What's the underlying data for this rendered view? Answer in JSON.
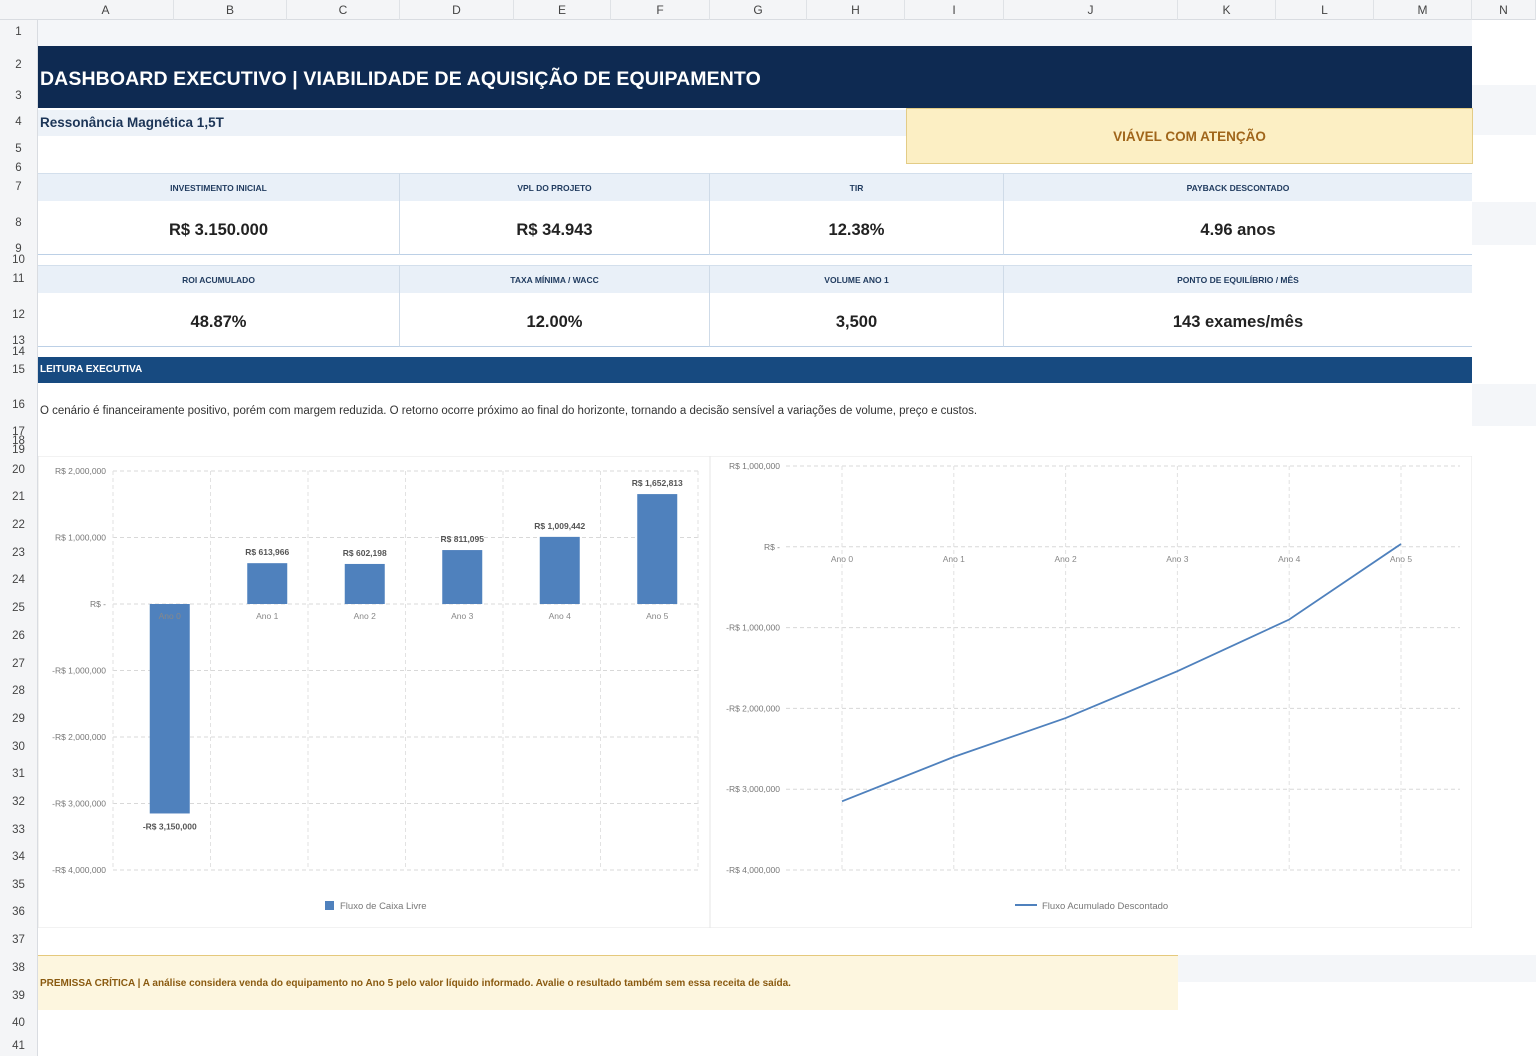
{
  "columns": [
    "A",
    "B",
    "C",
    "D",
    "E",
    "F",
    "G",
    "H",
    "I",
    "J",
    "K",
    "L",
    "M",
    "N"
  ],
  "rows": [
    "1",
    "2",
    "3",
    "4",
    "5",
    "6",
    "7",
    "8",
    "9",
    "10",
    "11",
    "12",
    "13",
    "14",
    "15",
    "16",
    "17",
    "18",
    "19",
    "20",
    "21",
    "22",
    "23",
    "24",
    "25",
    "26",
    "27",
    "28",
    "29",
    "30",
    "31",
    "32",
    "33",
    "34",
    "35",
    "36",
    "37",
    "38",
    "39",
    "40",
    "41"
  ],
  "header": {
    "title": "DASHBOARD EXECUTIVO | VIABILIDADE DE AQUISIÇÃO DE EQUIPAMENTO",
    "subtitle": "Ressonância Magnética 1,5T",
    "status": "VIÁVEL COM ATENÇÃO"
  },
  "kpis_row1": [
    {
      "label": "INVESTIMENTO INICIAL",
      "value": "R$ 3.150.000"
    },
    {
      "label": "VPL DO PROJETO",
      "value": "R$ 34.943"
    },
    {
      "label": "TIR",
      "value": "12.38%"
    },
    {
      "label": "PAYBACK DESCONTADO",
      "value": "4.96 anos"
    }
  ],
  "kpis_row2": [
    {
      "label": "ROI ACUMULADO",
      "value": "48.87%"
    },
    {
      "label": "TAXA MÍNIMA / WACC",
      "value": "12.00%"
    },
    {
      "label": "VOLUME ANO 1",
      "value": "3,500"
    },
    {
      "label": "PONTO DE EQUILÍBRIO / MÊS",
      "value": "143 exames/mês"
    }
  ],
  "section": {
    "title": "LEITURA EXECUTIVA",
    "text": "O cenário é financeiramente positivo, porém com margem reduzida. O retorno ocorre próximo ao final do horizonte, tornando a decisão sensível a variações de volume, preço e custos."
  },
  "premise": "PREMISSA CRÍTICA  |  A análise considera venda do equipamento no Ano 5 pelo valor líquido informado. Avalie o resultado também sem essa receita de saída.",
  "chart_data": [
    {
      "type": "bar",
      "categories": [
        "Ano 0",
        "Ano 1",
        "Ano 2",
        "Ano 3",
        "Ano 4",
        "Ano 5"
      ],
      "series": [
        {
          "name": "Fluxo de Caixa Livre",
          "values": [
            -3150000,
            613966,
            602198,
            811095,
            1009442,
            1652813
          ],
          "color": "#4f81bd"
        }
      ],
      "data_labels": [
        "-R$ 3,150,000",
        "R$ 613,966",
        "R$ 602,198",
        "R$ 811,095",
        "R$ 1,009,442",
        "R$ 1,652,813"
      ],
      "yticks": [
        2000000,
        1000000,
        0,
        -1000000,
        -2000000,
        -3000000,
        -4000000
      ],
      "ytick_labels": [
        "R$ 2,000,000",
        "R$ 1,000,000",
        "R$ -",
        "-R$ 1,000,000",
        "-R$ 2,000,000",
        "-R$ 3,000,000",
        "-R$ 4,000,000"
      ],
      "ylim": [
        -4000000,
        2000000
      ],
      "grid": true,
      "legend": "bottom"
    },
    {
      "type": "line",
      "categories": [
        "Ano 0",
        "Ano 1",
        "Ano 2",
        "Ano 3",
        "Ano 4",
        "Ano 5"
      ],
      "series": [
        {
          "name": "Fluxo Acumulado Descontado",
          "values": [
            -3150000,
            -2600000,
            -2120000,
            -1540000,
            -900000,
            35000
          ],
          "color": "#4f81bd"
        }
      ],
      "yticks": [
        1000000,
        0,
        -1000000,
        -2000000,
        -3000000,
        -4000000
      ],
      "ytick_labels": [
        "R$ 1,000,000",
        "R$ -",
        "-R$ 1,000,000",
        "-R$ 2,000,000",
        "-R$ 3,000,000",
        "-R$ 4,000,000"
      ],
      "ylim": [
        -4000000,
        1000000
      ],
      "grid": true,
      "legend": "bottom"
    }
  ]
}
